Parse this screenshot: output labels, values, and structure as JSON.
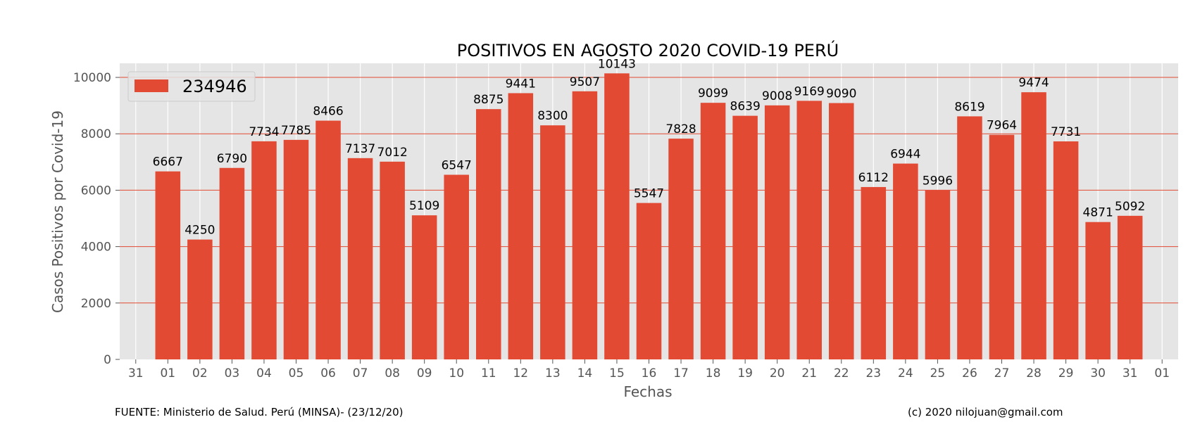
{
  "chart_data": {
    "type": "bar",
    "title": "POSITIVOS EN AGOSTO 2020 COVID-19 PERÚ",
    "xlabel": "Fechas",
    "ylabel": "Casos Positivos por Covid-19",
    "legend": {
      "label": "234946",
      "position": "top-left"
    },
    "ylim": [
      0,
      10500
    ],
    "yticks": [
      0,
      2000,
      4000,
      6000,
      8000,
      10000
    ],
    "grid": true,
    "bar_color": "#e24a33",
    "background_color": "#e5e5e5",
    "xtick_labels": [
      "31",
      "01",
      "02",
      "03",
      "04",
      "05",
      "06",
      "07",
      "08",
      "09",
      "10",
      "11",
      "12",
      "13",
      "14",
      "15",
      "16",
      "17",
      "18",
      "19",
      "20",
      "21",
      "22",
      "23",
      "24",
      "25",
      "26",
      "27",
      "28",
      "29",
      "30",
      "31",
      "01"
    ],
    "categories": [
      "01",
      "02",
      "03",
      "04",
      "05",
      "06",
      "07",
      "08",
      "09",
      "10",
      "11",
      "12",
      "13",
      "14",
      "15",
      "16",
      "17",
      "18",
      "19",
      "20",
      "21",
      "22",
      "23",
      "24",
      "25",
      "26",
      "27",
      "28",
      "29",
      "30",
      "31"
    ],
    "values": [
      6667,
      4250,
      6790,
      7734,
      7785,
      8466,
      7137,
      7012,
      5109,
      6547,
      8875,
      9441,
      8300,
      9507,
      10143,
      5547,
      7828,
      9099,
      8639,
      9008,
      9169,
      9090,
      6112,
      6944,
      5996,
      8619,
      7964,
      9474,
      7731,
      4871,
      5092
    ]
  },
  "footer": {
    "source": "FUENTE: Ministerio de Salud. Perú (MINSA)- (23/12/20)",
    "credit": "(c) 2020 nilojuan@gmail.com"
  }
}
